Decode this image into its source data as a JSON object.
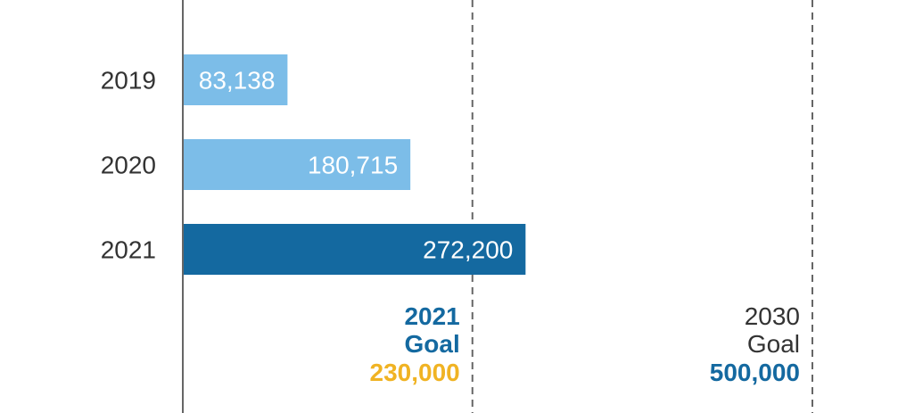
{
  "chart_data": {
    "type": "bar",
    "orientation": "horizontal",
    "categories": [
      "2019",
      "2020",
      "2021"
    ],
    "values": [
      83138,
      180715,
      272200
    ],
    "value_labels": [
      "83,138",
      "180,715",
      "272,200"
    ],
    "bar_colors": [
      "#7cbde8",
      "#7cbde8",
      "#1469a0"
    ],
    "xlim": [
      0,
      500000
    ],
    "grid": false,
    "reference_lines": [
      {
        "value": 230000,
        "lines": [
          {
            "text": "2021",
            "color": "#1469a0",
            "bold": true
          },
          {
            "text": "Goal",
            "color": "#1469a0",
            "bold": true
          },
          {
            "text": "230,000",
            "color": "#f0b323",
            "bold": true
          }
        ]
      },
      {
        "value": 500000,
        "lines": [
          {
            "text": "2030",
            "color": "#333333",
            "bold": false
          },
          {
            "text": "Goal",
            "color": "#333333",
            "bold": false
          },
          {
            "text": "500,000",
            "color": "#1469a0",
            "bold": true
          }
        ]
      }
    ]
  },
  "colors": {
    "axis": "#666666",
    "dashed_line": "#666666",
    "category_text": "#333333",
    "bar_text": "#ffffff"
  }
}
